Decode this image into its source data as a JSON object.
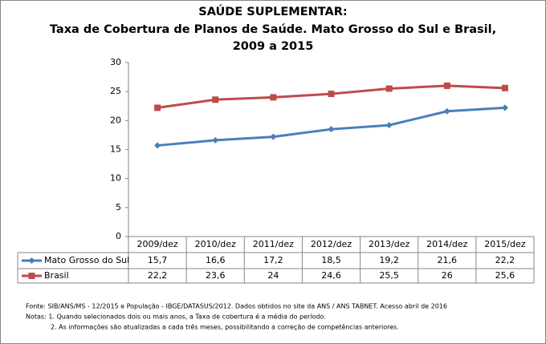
{
  "chart_data": {
    "type": "line",
    "title": [
      "SAÚDE SUPLEMENTAR:",
      "Taxa de Cobertura de Planos de Saúde. Mato Grosso do Sul e Brasil,",
      "2009 a 2015"
    ],
    "categories": [
      "2009/dez",
      "2010/dez",
      "2011/dez",
      "2012/dez",
      "2013/dez",
      "2014/dez",
      "2015/dez"
    ],
    "series": [
      {
        "name": "Mato Grosso do Sul",
        "color": "#4a7ebb",
        "marker": "diamond",
        "values": [
          15.7,
          16.6,
          17.2,
          18.5,
          19.2,
          21.6,
          22.2
        ],
        "value_labels": [
          "15,7",
          "16,6",
          "17,2",
          "18,5",
          "19,2",
          "21,6",
          "22,2"
        ]
      },
      {
        "name": "Brasil",
        "color": "#be4b48",
        "marker": "square",
        "values": [
          22.2,
          23.6,
          24,
          24.6,
          25.5,
          26,
          25.6
        ],
        "value_labels": [
          "22,2",
          "23,6",
          "24",
          "24,6",
          "25,5",
          "26",
          "25,6"
        ]
      }
    ],
    "ylim": [
      0,
      30
    ],
    "yticks": [
      0,
      5,
      10,
      15,
      20,
      25,
      30
    ],
    "grid": false,
    "notes": [
      "Fonte:  SIB/ANS/MS - 12/2015 e População - IBGE/DATASUS/2012. Dados obtidos no site da ANS / ANS TABNET. Acesso abril de 2016",
      "Notas: 1. Quando selecionados dois ou mais anos, a Taxa de cobertura é a média do período.",
      "2. As informações são atualizadas a cada três meses, possibilitando a correção de competências anteriores."
    ]
  }
}
